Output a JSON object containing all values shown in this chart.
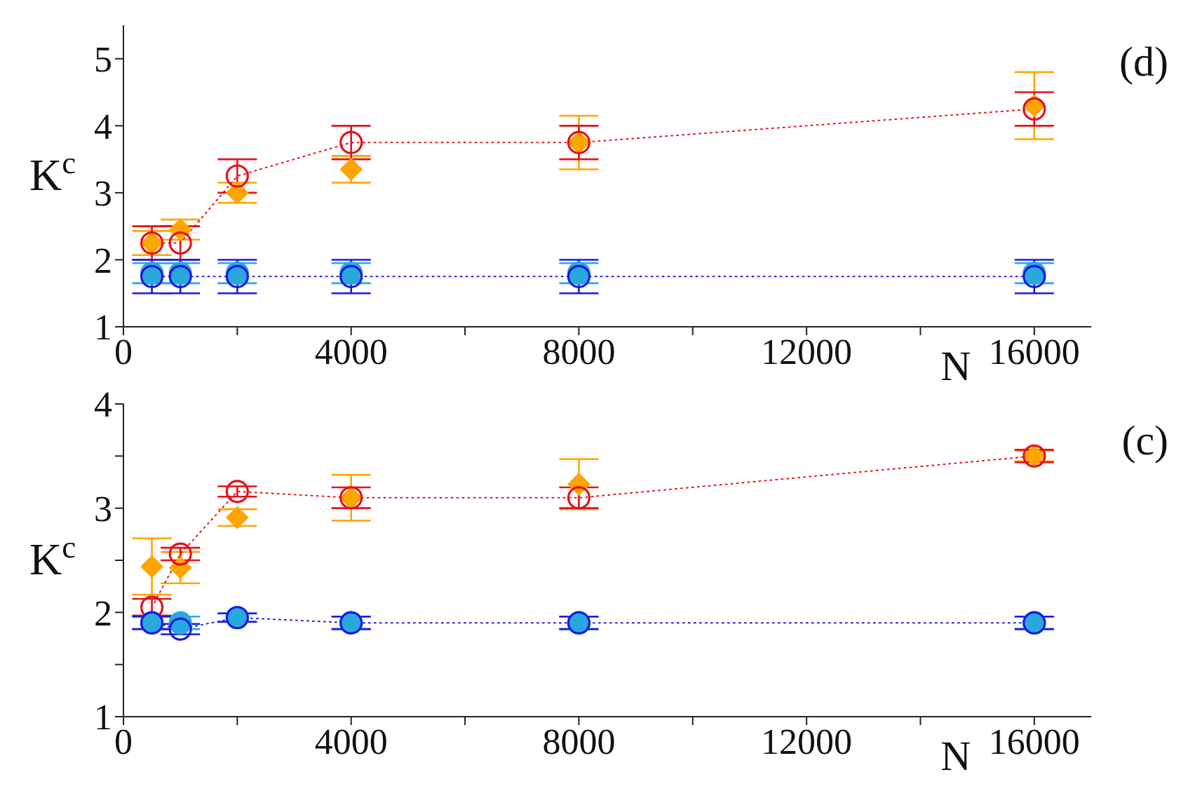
{
  "chart_data": [
    {
      "type": "scatter",
      "annotations": [
        "(d)"
      ],
      "xlabel": "N",
      "ylabel": "K$^{c}$",
      "x": [
        500,
        1000,
        2000,
        4000,
        8000,
        16000
      ],
      "xlim": [
        0,
        17000
      ],
      "xticks": [
        0,
        {
          "value": 2000,
          "label": null
        },
        4000,
        {
          "value": 6000,
          "label": null
        },
        8000,
        {
          "value": 10000,
          "label": null
        },
        12000,
        {
          "value": 14000,
          "label": null
        },
        16000
      ],
      "ylim": [
        1,
        5.5
      ],
      "yticks": [
        1,
        2,
        3,
        4,
        5
      ],
      "series": [
        {
          "marker": "diamond",
          "color": "#ffa500",
          "values": [
            2.25,
            2.45,
            3.0,
            3.35,
            3.75,
            4.3
          ],
          "errors": [
            0.18,
            0.15,
            0.15,
            0.2,
            0.4,
            0.5
          ]
        },
        {
          "type": "line",
          "marker": "circle",
          "line_style": "dotted",
          "color": "#e8101a",
          "values": [
            2.25,
            2.25,
            3.25,
            3.75,
            3.75,
            4.25
          ],
          "errors": [
            0.25,
            0.25,
            0.25,
            0.25,
            0.25,
            0.25
          ]
        },
        {
          "marker": "circle",
          "color": "#29a8e0",
          "values": [
            1.8,
            1.8,
            1.8,
            1.8,
            1.8,
            1.8
          ],
          "errors": [
            0.15,
            0.15,
            0.15,
            0.15,
            0.15,
            0.15
          ]
        },
        {
          "type": "line",
          "marker": "circle",
          "line_style": "dotted",
          "color": "#1a1ae0",
          "values": [
            1.75,
            1.75,
            1.75,
            1.75,
            1.75,
            1.75
          ],
          "errors": [
            0.25,
            0.25,
            0.25,
            0.25,
            0.25,
            0.25
          ]
        }
      ]
    },
    {
      "type": "scatter",
      "annotations": [
        "(c)"
      ],
      "xlabel": "N",
      "ylabel": "K$^{c}$",
      "x": [
        500,
        1000,
        2000,
        4000,
        8000,
        16000
      ],
      "xlim": [
        0,
        17000
      ],
      "xticks": [
        0,
        {
          "value": 2000,
          "label": null
        },
        4000,
        {
          "value": 6000,
          "label": null
        },
        8000,
        {
          "value": 10000,
          "label": null
        },
        12000,
        {
          "value": 14000,
          "label": null
        },
        16000
      ],
      "ylim": [
        1,
        4
      ],
      "yticks": [
        1,
        {
          "value": 1.5,
          "label": null
        },
        2,
        {
          "value": 2.5,
          "label": null
        },
        3,
        {
          "value": 3.5,
          "label": null
        },
        4
      ],
      "series": [
        {
          "marker": "diamond",
          "color": "#ffa500",
          "values": [
            2.44,
            2.43,
            2.91,
            3.1,
            3.23,
            3.5
          ],
          "errors": [
            0.27,
            0.15,
            0.08,
            0.22,
            0.24,
            0.05
          ]
        },
        {
          "type": "line",
          "marker": "circle",
          "line_style": "dotted",
          "color": "#e8101a",
          "values": [
            2.05,
            2.56,
            3.16,
            3.1,
            3.1,
            3.5
          ],
          "errors": [
            0.08,
            0.06,
            0.05,
            0.1,
            0.1,
            0.06
          ]
        },
        {
          "marker": "circle",
          "color": "#29a8e0",
          "values": [
            1.9,
            1.9,
            1.95,
            1.9,
            1.9,
            1.9
          ],
          "errors": [
            0.06,
            0.06,
            0.04,
            0.06,
            0.06,
            0.06
          ]
        },
        {
          "type": "line",
          "marker": "circle",
          "line_style": "dotted",
          "color": "#1a1ae0",
          "values": [
            1.9,
            1.84,
            1.95,
            1.9,
            1.9,
            1.9
          ],
          "errors": [
            0.06,
            0.05,
            0.04,
            0.06,
            0.06,
            0.06
          ]
        }
      ]
    }
  ]
}
